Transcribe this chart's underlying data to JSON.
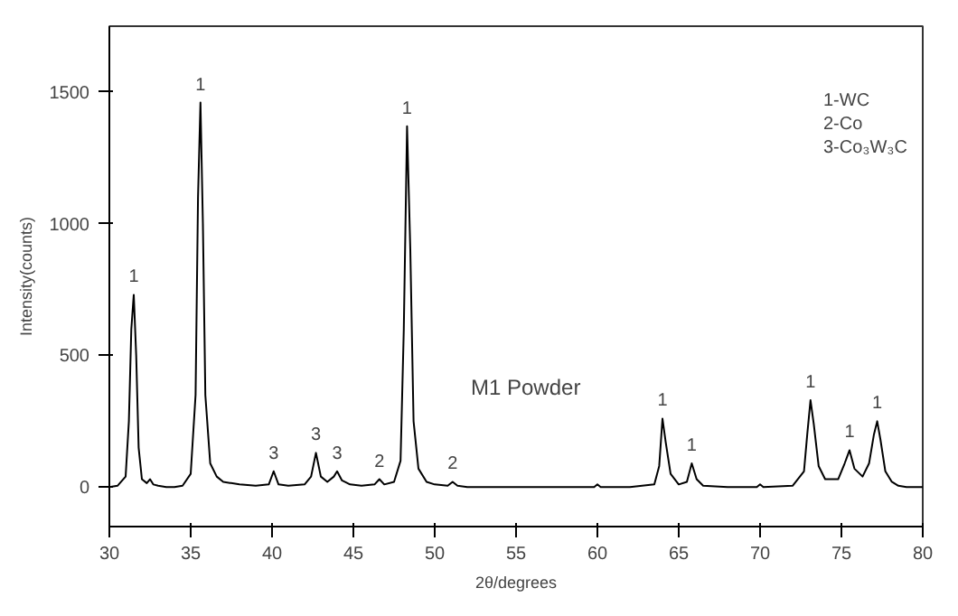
{
  "chart_data": {
    "type": "line",
    "xlabel": "2θ/degrees",
    "ylabel": "Intensity(counts)",
    "xlim": [
      30,
      80
    ],
    "ylim": [
      -150,
      1750
    ],
    "xticks": [
      30,
      35,
      40,
      45,
      50,
      55,
      60,
      65,
      70,
      75,
      80
    ],
    "yticks": [
      0,
      500,
      1000,
      1500
    ],
    "grid": false,
    "marker": "none",
    "line_style": "solid",
    "series": [
      {
        "color": "#000000",
        "x": [
          30,
          30.5,
          31,
          31.2,
          31.35,
          31.5,
          31.65,
          31.8,
          32,
          32.3,
          32.5,
          32.7,
          33,
          33.5,
          34,
          34.5,
          35,
          35.3,
          35.45,
          35.6,
          35.75,
          35.9,
          36.2,
          36.6,
          37,
          38,
          39,
          39.8,
          40.1,
          40.4,
          41,
          42,
          42.4,
          42.7,
          43,
          43.4,
          43.8,
          44,
          44.3,
          44.8,
          45.5,
          46.3,
          46.6,
          46.9,
          47.5,
          47.9,
          48.1,
          48.3,
          48.5,
          48.7,
          49,
          49.5,
          50,
          50.8,
          51.1,
          51.4,
          52,
          54,
          56,
          58,
          59.8,
          60,
          60.2,
          62,
          63.5,
          63.8,
          64,
          64.2,
          64.5,
          65,
          65.5,
          65.8,
          66.1,
          66.5,
          68,
          69.8,
          70,
          70.2,
          72,
          72.7,
          72.9,
          73.1,
          73.3,
          73.6,
          74,
          74.8,
          75.2,
          75.5,
          75.8,
          76.3,
          76.7,
          77,
          77.2,
          77.4,
          77.7,
          78.1,
          78.5,
          79,
          80
        ],
        "values": [
          0,
          5,
          40,
          250,
          600,
          730,
          500,
          150,
          30,
          15,
          30,
          10,
          5,
          0,
          0,
          5,
          50,
          350,
          1100,
          1460,
          1000,
          350,
          90,
          40,
          20,
          10,
          5,
          10,
          60,
          10,
          5,
          10,
          40,
          130,
          40,
          20,
          40,
          60,
          25,
          10,
          5,
          10,
          30,
          10,
          20,
          100,
          600,
          1370,
          900,
          250,
          70,
          20,
          10,
          5,
          20,
          5,
          0,
          0,
          0,
          0,
          0,
          10,
          0,
          0,
          10,
          80,
          260,
          170,
          50,
          10,
          20,
          90,
          30,
          5,
          0,
          0,
          10,
          0,
          5,
          60,
          200,
          330,
          240,
          80,
          30,
          30,
          90,
          140,
          70,
          40,
          90,
          200,
          250,
          180,
          60,
          20,
          5,
          0,
          0
        ]
      }
    ],
    "annotations": [
      {
        "text": "1",
        "x": 31.5,
        "y": 730
      },
      {
        "text": "1",
        "x": 35.6,
        "y": 1460
      },
      {
        "text": "3",
        "x": 40.1,
        "y": 60
      },
      {
        "text": "3",
        "x": 42.7,
        "y": 130
      },
      {
        "text": "3",
        "x": 44.0,
        "y": 60
      },
      {
        "text": "2",
        "x": 46.6,
        "y": 30
      },
      {
        "text": "1",
        "x": 48.3,
        "y": 1370
      },
      {
        "text": "2",
        "x": 51.1,
        "y": 20
      },
      {
        "text": "1",
        "x": 64.0,
        "y": 260
      },
      {
        "text": "1",
        "x": 65.8,
        "y": 90
      },
      {
        "text": "1",
        "x": 73.1,
        "y": 330
      },
      {
        "text": "1",
        "x": 75.5,
        "y": 140
      },
      {
        "text": "1",
        "x": 77.2,
        "y": 250
      },
      "M1 Powder",
      "1-WC",
      "2-Co",
      "3-Co₃W₃C"
    ]
  }
}
